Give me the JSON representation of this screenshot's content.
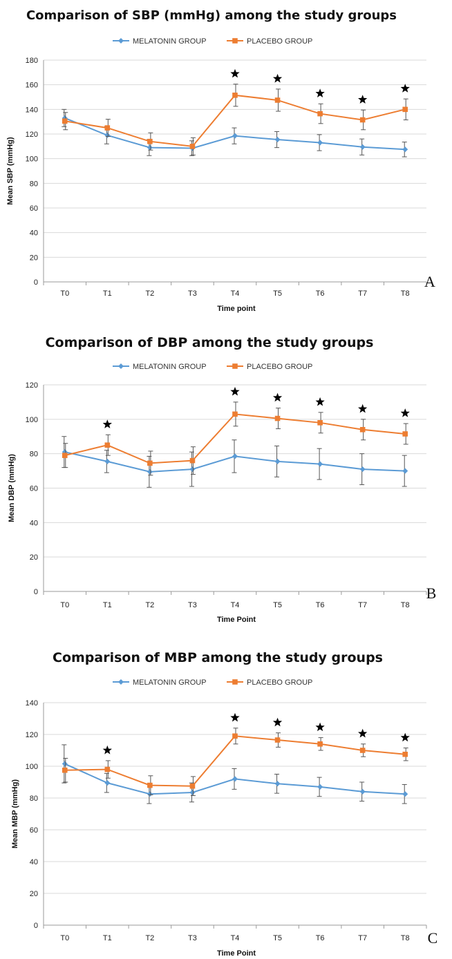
{
  "chart_data": [
    {
      "type": "line",
      "title": "Comparison of SBP (mmHg) among the study groups",
      "xlabel": "Time point",
      "ylabel": "Mean SBP (mmHg)",
      "ylim": [
        0,
        180
      ],
      "yticks": [
        0,
        20,
        40,
        60,
        80,
        100,
        120,
        140,
        160,
        180
      ],
      "categories": [
        "T0",
        "T1",
        "T2",
        "T3",
        "T4",
        "T5",
        "T6",
        "T7",
        "T8"
      ],
      "series": [
        {
          "name": "MELATONIN GROUP",
          "color": "#5b9bd5",
          "marker": "diamond",
          "values": [
            133,
            119,
            109,
            108.5,
            118.5,
            115.5,
            113,
            109.5,
            107.5
          ],
          "error": [
            7,
            7,
            6.5,
            6,
            6.5,
            6.5,
            6.5,
            6.5,
            6
          ]
        },
        {
          "name": "PLACEBO GROUP",
          "color": "#ed7d31",
          "marker": "square",
          "values": [
            130.5,
            125,
            114,
            110,
            151.5,
            147.5,
            136.5,
            131.5,
            140
          ],
          "error": [
            7,
            7,
            7,
            7,
            9,
            9,
            8,
            8,
            8.5
          ]
        }
      ],
      "significant": [
        "T4",
        "T5",
        "T6",
        "T7",
        "T8"
      ],
      "grid": true,
      "legend": "top-center",
      "panel_label": "A"
    },
    {
      "type": "line",
      "title": "Comparison of DBP among the study groups",
      "xlabel": "Time Point",
      "ylabel": "Mean DBP (mmHg)",
      "ylim": [
        0,
        120
      ],
      "yticks": [
        0,
        20,
        40,
        60,
        80,
        100,
        120
      ],
      "categories": [
        "T0",
        "T1",
        "T2",
        "T3",
        "T4",
        "T5",
        "T6",
        "T7",
        "T8"
      ],
      "series": [
        {
          "name": "MELATONIN GROUP",
          "color": "#5b9bd5",
          "marker": "diamond",
          "values": [
            81,
            75.5,
            69.5,
            71,
            78.5,
            75.5,
            74,
            71,
            70
          ],
          "error": [
            9,
            6.5,
            9,
            10,
            9.5,
            9,
            9,
            9,
            9
          ]
        },
        {
          "name": "PLACEBO GROUP",
          "color": "#ed7d31",
          "marker": "square",
          "values": [
            79,
            85,
            74.5,
            76,
            103,
            100.5,
            98,
            94,
            91.5
          ],
          "error": [
            7,
            6,
            7,
            8,
            7,
            6,
            6,
            6,
            6
          ]
        }
      ],
      "significant": [
        "T1",
        "T4",
        "T5",
        "T6",
        "T7",
        "T8"
      ],
      "grid": true,
      "legend": "top-center",
      "panel_label": "B"
    },
    {
      "type": "line",
      "title": "Comparison of MBP among the study groups",
      "xlabel": "Time Point",
      "ylabel": "Mean MBP (mmHg)",
      "ylim": [
        0,
        140
      ],
      "yticks": [
        0,
        20,
        40,
        60,
        80,
        100,
        120,
        140
      ],
      "categories": [
        "T0",
        "T1",
        "T2",
        "T3",
        "T4",
        "T5",
        "T6",
        "T7",
        "T8"
      ],
      "series": [
        {
          "name": "MELATONIN GROUP",
          "color": "#5b9bd5",
          "marker": "diamond",
          "values": [
            101.5,
            89.5,
            82.5,
            83.5,
            92,
            89,
            87,
            84,
            82.5
          ],
          "error": [
            12,
            6,
            6,
            6,
            6.5,
            6,
            6,
            6,
            6
          ]
        },
        {
          "name": "PLACEBO GROUP",
          "color": "#ed7d31",
          "marker": "square",
          "values": [
            97.5,
            98,
            88,
            87.5,
            119,
            116.5,
            114,
            110,
            107.5
          ],
          "error": [
            7.5,
            5.5,
            6,
            6,
            5,
            4.5,
            4,
            4,
            4
          ]
        }
      ],
      "significant": [
        "T1",
        "T4",
        "T5",
        "T6",
        "T7",
        "T8"
      ],
      "grid": true,
      "legend": "top-center",
      "panel_label": "C"
    }
  ]
}
